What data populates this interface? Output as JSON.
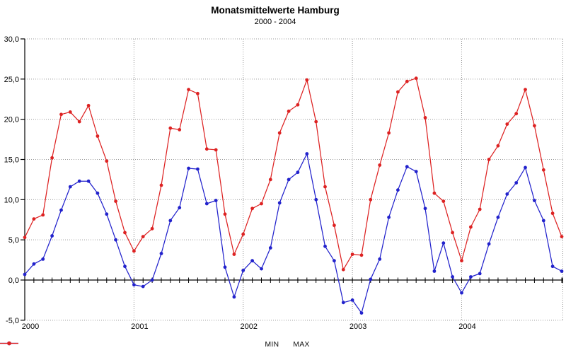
{
  "header": {
    "title": "Monatsmittelwerte Hamburg",
    "subtitle": "2000 - 2004"
  },
  "chart_data": {
    "type": "line",
    "title": "Monatsmittelwerte Hamburg",
    "subtitle": "2000 - 2004",
    "x_years": [
      2000,
      2001,
      2002,
      2003,
      2004
    ],
    "months_per_year": 12,
    "x_tick_labels": [
      "2000",
      "2001",
      "2002",
      "2003",
      "2004"
    ],
    "y_ticks": [
      30,
      25,
      20,
      15,
      10,
      5,
      0,
      -5
    ],
    "y_tick_labels": [
      "30,0",
      "25,0",
      "20,0",
      "15,0",
      "10,0",
      "5,0",
      "0,0",
      "-5,0"
    ],
    "ylim": [
      -5,
      30
    ],
    "grid": "dotted",
    "gridline_color": "#999999",
    "axis_color": "#000000",
    "legend_position": "bottom-center",
    "series": [
      {
        "name": "MIN",
        "color": "#2222cc",
        "values": [
          0.7,
          2.0,
          2.6,
          5.5,
          8.7,
          11.6,
          12.3,
          12.3,
          10.8,
          8.2,
          5.0,
          1.7,
          -0.6,
          -0.8,
          0.0,
          3.3,
          7.4,
          9.0,
          13.9,
          13.8,
          9.5,
          9.9,
          1.6,
          -2.1,
          1.2,
          2.4,
          1.4,
          4.0,
          9.6,
          12.5,
          13.4,
          15.7,
          10.0,
          4.2,
          2.4,
          -2.8,
          -2.5,
          -4.1,
          0.1,
          2.6,
          7.8,
          11.2,
          14.1,
          13.5,
          8.9,
          1.1,
          4.6,
          0.4,
          -1.6,
          0.4,
          0.8,
          4.5,
          7.8,
          10.7,
          12.1,
          14.0,
          9.9,
          7.4,
          1.7,
          1.1
        ]
      },
      {
        "name": "MAX",
        "color": "#dd2222",
        "values": [
          5.3,
          7.6,
          8.1,
          15.2,
          20.6,
          20.9,
          19.7,
          21.7,
          17.9,
          14.8,
          9.8,
          5.9,
          3.6,
          5.4,
          6.4,
          11.8,
          18.9,
          18.7,
          23.7,
          23.2,
          16.3,
          16.2,
          8.2,
          3.2,
          5.7,
          8.9,
          9.5,
          12.5,
          18.3,
          21.0,
          21.8,
          24.9,
          19.7,
          11.6,
          6.8,
          1.3,
          3.2,
          3.1,
          10.0,
          14.3,
          18.3,
          23.4,
          24.7,
          25.1,
          20.2,
          10.8,
          9.8,
          5.9,
          2.4,
          6.6,
          8.8,
          15.0,
          16.7,
          19.4,
          20.7,
          23.7,
          19.2,
          13.7,
          8.3,
          5.4
        ]
      }
    ]
  },
  "legend": {
    "items": [
      {
        "label": "MIN",
        "color": "#2222cc"
      },
      {
        "label": "MAX",
        "color": "#dd2222"
      }
    ]
  }
}
